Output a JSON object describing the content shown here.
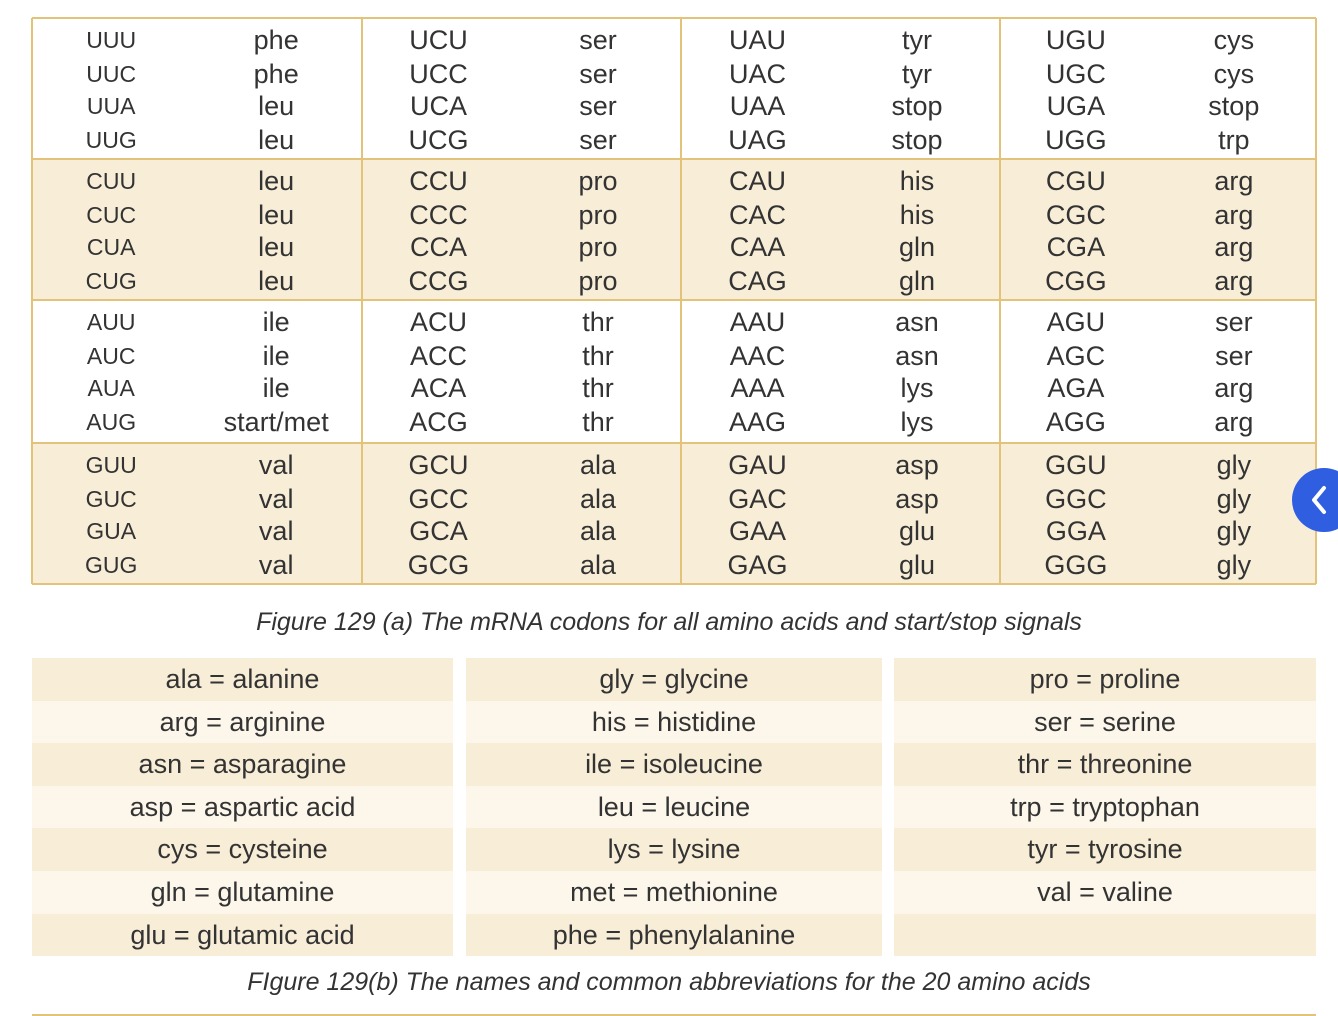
{
  "codon_table": {
    "groups": [
      [
        [
          "UUU",
          "phe",
          "UCU",
          "ser",
          "UAU",
          "tyr",
          "UGU",
          "cys"
        ],
        [
          "UUC",
          "phe",
          "UCC",
          "ser",
          "UAC",
          "tyr",
          "UGC",
          "cys"
        ],
        [
          "UUA",
          "leu",
          "UCA",
          "ser",
          "UAA",
          "stop",
          "UGA",
          "stop"
        ],
        [
          "UUG",
          "leu",
          "UCG",
          "ser",
          "UAG",
          "stop",
          "UGG",
          "trp"
        ]
      ],
      [
        [
          "CUU",
          "leu",
          "CCU",
          "pro",
          "CAU",
          "his",
          "CGU",
          "arg"
        ],
        [
          "CUC",
          "leu",
          "CCC",
          "pro",
          "CAC",
          "his",
          "CGC",
          "arg"
        ],
        [
          "CUA",
          "leu",
          "CCA",
          "pro",
          "CAA",
          "gln",
          "CGA",
          "arg"
        ],
        [
          "CUG",
          "leu",
          "CCG",
          "pro",
          "CAG",
          "gln",
          "CGG",
          "arg"
        ]
      ],
      [
        [
          "AUU",
          "ile",
          "ACU",
          "thr",
          "AAU",
          "asn",
          "AGU",
          "ser"
        ],
        [
          "AUC",
          "ile",
          "ACC",
          "thr",
          "AAC",
          "asn",
          "AGC",
          "ser"
        ],
        [
          "AUA",
          "ile",
          "ACA",
          "thr",
          "AAA",
          "lys",
          "AGA",
          "arg"
        ],
        [
          "AUG",
          "start/met",
          "ACG",
          "thr",
          "AAG",
          "lys",
          "AGG",
          "arg"
        ]
      ],
      [
        [
          "GUU",
          "val",
          "GCU",
          "ala",
          "GAU",
          "asp",
          "GGU",
          "gly"
        ],
        [
          "GUC",
          "val",
          "GCC",
          "ala",
          "GAC",
          "asp",
          "GGC",
          "gly"
        ],
        [
          "GUA",
          "val",
          "GCA",
          "ala",
          "GAA",
          "glu",
          "GGA",
          "gly"
        ],
        [
          "GUG",
          "val",
          "GCG",
          "ala",
          "GAG",
          "glu",
          "GGG",
          "gly"
        ]
      ]
    ],
    "caption": "Figure 129 (a) The mRNA codons for all amino acids and start/stop signals"
  },
  "names_table": {
    "rows": [
      [
        "ala = alanine",
        "gly = glycine",
        "pro = proline"
      ],
      [
        "arg = arginine",
        "his = histidine",
        "ser = serine"
      ],
      [
        "asn = asparagine",
        "ile = isoleucine",
        "thr = threonine"
      ],
      [
        "asp = aspartic acid",
        "leu = leucine",
        "trp = tryptophan"
      ],
      [
        "cys = cysteine",
        "lys = lysine",
        "tyr = tyrosine"
      ],
      [
        "gln = glutamine",
        "met = methionine",
        "val = valine"
      ],
      [
        "glu = glutamic acid",
        "phe = phenylalanine"
      ]
    ],
    "caption": "FIgure 129(b) The names and common abbreviations for the 20 amino acids"
  }
}
